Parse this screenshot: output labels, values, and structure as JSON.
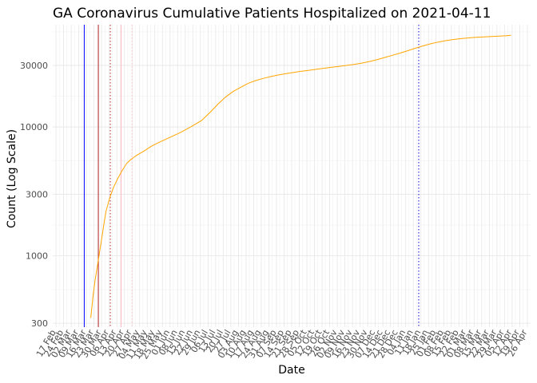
{
  "chart_data": {
    "type": "line",
    "title": "GA Coronavirus Cumulative Patients Hospitalized on 2021-04-11",
    "xlabel": "Date",
    "ylabel": "Count (Log Scale)",
    "y_scale": "log10",
    "ylim": [
      280,
      62000
    ],
    "xlim": [
      "2020-02-14",
      "2021-04-29"
    ],
    "y_ticks": [
      300,
      1000,
      3000,
      10000,
      30000
    ],
    "y_tick_labels": [
      "300",
      "1000",
      "3000",
      "10000",
      "30000"
    ],
    "x_tick_labels": [
      "17 Feb",
      "24 Feb",
      "02 Mar",
      "09 Mar",
      "16 Mar",
      "23 Mar",
      "30 Mar",
      "06 Apr",
      "13 Apr",
      "20 Apr",
      "27 Apr",
      "04 May",
      "11 May",
      "18 May",
      "25 May",
      "01 Jun",
      "08 Jun",
      "15 Jun",
      "22 Jun",
      "29 Jun",
      "06 Jul",
      "13 Jul",
      "20 Jul",
      "27 Jul",
      "03 Aug",
      "10 Aug",
      "17 Aug",
      "24 Aug",
      "31 Aug",
      "07 Sep",
      "14 Sep",
      "21 Sep",
      "28 Sep",
      "05 Oct",
      "12 Oct",
      "19 Oct",
      "26 Oct",
      "02 Nov",
      "09 Nov",
      "16 Nov",
      "23 Nov",
      "30 Nov",
      "07 Dec",
      "14 Dec",
      "21 Dec",
      "28 Dec",
      "04 Jan",
      "11 Jan",
      "18 Jan",
      "25 Jan",
      "01 Feb",
      "08 Feb",
      "15 Feb",
      "22 Feb",
      "01 Mar",
      "08 Mar",
      "15 Mar",
      "22 Mar",
      "29 Mar",
      "05 Apr",
      "12 Apr",
      "19 Apr",
      "26 Apr"
    ],
    "x_tick_start": "2020-02-17",
    "x_tick_interval_days": 7,
    "grid": true,
    "legend": "none",
    "series": [
      {
        "color": "#FFA500",
        "points": [
          [
            "2020-03-20",
            330
          ],
          [
            "2020-03-22",
            480
          ],
          [
            "2020-03-24",
            650
          ],
          [
            "2020-03-26",
            820
          ],
          [
            "2020-03-28",
            1050
          ],
          [
            "2020-03-30",
            1350
          ],
          [
            "2020-04-01",
            1750
          ],
          [
            "2020-04-03",
            2200
          ],
          [
            "2020-04-05",
            2550
          ],
          [
            "2020-04-07",
            2900
          ],
          [
            "2020-04-10",
            3400
          ],
          [
            "2020-04-14",
            4000
          ],
          [
            "2020-04-18",
            4600
          ],
          [
            "2020-04-22",
            5200
          ],
          [
            "2020-04-26",
            5600
          ],
          [
            "2020-05-01",
            6000
          ],
          [
            "2020-05-08",
            6500
          ],
          [
            "2020-05-15",
            7100
          ],
          [
            "2020-05-22",
            7600
          ],
          [
            "2020-06-01",
            8300
          ],
          [
            "2020-06-10",
            9000
          ],
          [
            "2020-06-20",
            10000
          ],
          [
            "2020-06-30",
            11200
          ],
          [
            "2020-07-08",
            13000
          ],
          [
            "2020-07-15",
            15000
          ],
          [
            "2020-07-22",
            17000
          ],
          [
            "2020-07-29",
            18800
          ],
          [
            "2020-08-05",
            20300
          ],
          [
            "2020-08-12",
            21800
          ],
          [
            "2020-08-19",
            22900
          ],
          [
            "2020-08-26",
            23800
          ],
          [
            "2020-09-02",
            24600
          ],
          [
            "2020-09-09",
            25300
          ],
          [
            "2020-09-16",
            25900
          ],
          [
            "2020-09-23",
            26500
          ],
          [
            "2020-09-30",
            27000
          ],
          [
            "2020-10-07",
            27500
          ],
          [
            "2020-10-14",
            28000
          ],
          [
            "2020-10-21",
            28500
          ],
          [
            "2020-10-28",
            29000
          ],
          [
            "2020-11-04",
            29500
          ],
          [
            "2020-11-11",
            30000
          ],
          [
            "2020-11-18",
            30600
          ],
          [
            "2020-11-25",
            31300
          ],
          [
            "2020-12-02",
            32200
          ],
          [
            "2020-12-09",
            33300
          ],
          [
            "2020-12-16",
            34600
          ],
          [
            "2020-12-23",
            36000
          ],
          [
            "2020-12-30",
            37400
          ],
          [
            "2021-01-06",
            39000
          ],
          [
            "2021-01-13",
            40800
          ],
          [
            "2021-01-20",
            42500
          ],
          [
            "2021-01-27",
            44100
          ],
          [
            "2021-02-03",
            45500
          ],
          [
            "2021-02-10",
            46700
          ],
          [
            "2021-02-17",
            47600
          ],
          [
            "2021-02-24",
            48400
          ],
          [
            "2021-03-03",
            49000
          ],
          [
            "2021-03-10",
            49500
          ],
          [
            "2021-03-17",
            49900
          ],
          [
            "2021-03-24",
            50200
          ],
          [
            "2021-03-31",
            50600
          ],
          [
            "2021-04-07",
            51000
          ],
          [
            "2021-04-11",
            51300
          ]
        ]
      }
    ],
    "vlines": [
      {
        "date": "2020-03-14",
        "color": "#0000FF",
        "style": "solid"
      },
      {
        "date": "2020-03-27",
        "color": "#B22222",
        "style": "solid"
      },
      {
        "date": "2020-04-07",
        "color": "#B22222",
        "style": "dotted"
      },
      {
        "date": "2020-04-17",
        "color": "#FFB6C1",
        "style": "solid"
      },
      {
        "date": "2020-04-27",
        "color": "#FFB6C1",
        "style": "dotted"
      },
      {
        "date": "2021-01-16",
        "color": "#0000CD",
        "style": "dotted"
      }
    ]
  }
}
